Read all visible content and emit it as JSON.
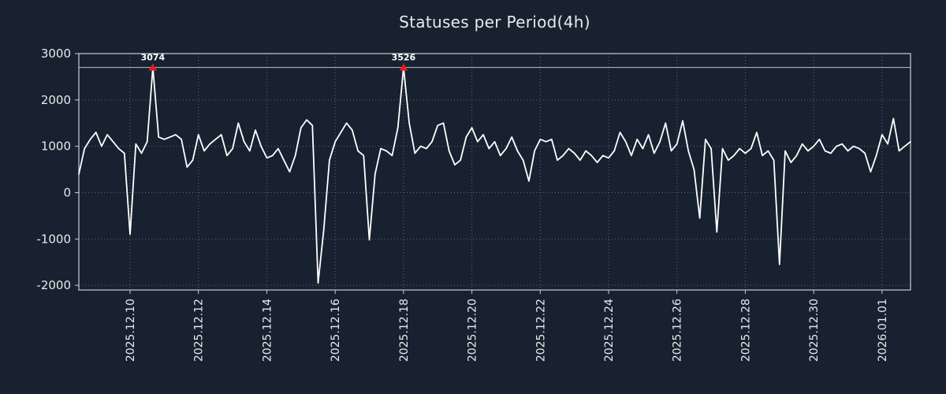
{
  "title": "Statuses per Period(4h)",
  "colors": {
    "background": "#18212f",
    "line": "#ffffff",
    "frame": "#c9ced6",
    "grid": "#9aa3b0",
    "threshold_line": "#d7dde3",
    "marker": "#dd1f1f",
    "text": "#e8eaed"
  },
  "chart_data": {
    "type": "line",
    "title": "Statuses per Period(4h)",
    "xlabel": "",
    "ylabel": "",
    "ylim": [
      -2100,
      3000
    ],
    "yticks": [
      3000,
      2000,
      1000,
      0,
      -1000,
      -2000
    ],
    "x_tick_labels": [
      "2025.12.10",
      "2025.12.12",
      "2025.12.14",
      "2025.12.16",
      "2025.12.18",
      "2025.12.20",
      "2025.12.22",
      "2025.12.24",
      "2025.12.26",
      "2025.12.28",
      "2025.12.30",
      "2026.01.01"
    ],
    "x_tick_indices": [
      9,
      21,
      33,
      45,
      57,
      69,
      81,
      93,
      105,
      117,
      129,
      141
    ],
    "clip_value": 2700,
    "values": [
      400,
      950,
      1150,
      1300,
      1000,
      1250,
      1100,
      950,
      850,
      -900,
      1050,
      850,
      1100,
      3074,
      1200,
      1150,
      1200,
      1250,
      1150,
      550,
      700,
      1250,
      900,
      1050,
      1150,
      1250,
      800,
      950,
      1500,
      1100,
      900,
      1350,
      1000,
      750,
      800,
      950,
      700,
      450,
      800,
      1400,
      1570,
      1450,
      -1950,
      -800,
      700,
      1100,
      1300,
      1500,
      1350,
      900,
      800,
      -1020,
      400,
      950,
      900,
      800,
      1400,
      3526,
      1500,
      850,
      1000,
      950,
      1100,
      1450,
      1500,
      900,
      600,
      700,
      1200,
      1400,
      1100,
      1250,
      950,
      1100,
      800,
      950,
      1200,
      900,
      700,
      250,
      900,
      1150,
      1100,
      1150,
      700,
      800,
      950,
      850,
      700,
      900,
      800,
      650,
      800,
      750,
      900,
      1300,
      1100,
      800,
      1150,
      950,
      1250,
      850,
      1100,
      1500,
      900,
      1050,
      1550,
      900,
      500,
      -550,
      1150,
      950,
      -850,
      950,
      700,
      800,
      950,
      850,
      950,
      1300,
      800,
      900,
      700,
      -1550,
      900,
      650,
      800,
      1050,
      900,
      1000,
      1150,
      900,
      850,
      1000,
      1050,
      900,
      1000,
      950,
      850,
      450,
      800,
      1250,
      1050,
      1600,
      900,
      1000,
      1100
    ],
    "annotations": [
      {
        "index": 13,
        "value": 3074,
        "label": "3074"
      },
      {
        "index": 57,
        "value": 3526,
        "label": "3526"
      }
    ],
    "grid": true,
    "legend": false
  }
}
